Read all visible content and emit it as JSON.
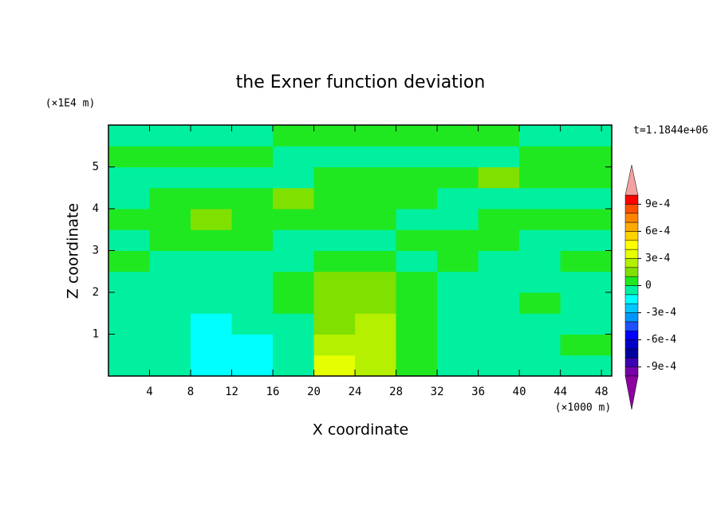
{
  "chart_data": {
    "type": "contour",
    "title": "the Exner function deviation",
    "subtitle": "t=1.1844e+06",
    "x_label": "X coordinate",
    "x_unit": "(×1000 m)",
    "y_label": "Z coordinate",
    "y_unit": "(×1E4 m)",
    "xlim": [
      0,
      49
    ],
    "ylim": [
      0,
      6
    ],
    "xticks": [
      4,
      8,
      12,
      16,
      20,
      24,
      28,
      32,
      36,
      40,
      44,
      48
    ],
    "yticks": [
      1,
      2,
      3,
      4,
      5
    ],
    "x": [
      2,
      6,
      10,
      14,
      18,
      22,
      26,
      30,
      34,
      38,
      42,
      46
    ],
    "y": [
      0.25,
      0.75,
      1.25,
      1.75,
      2.25,
      2.75,
      3.25,
      3.75,
      4.25,
      4.75,
      5.25,
      5.75
    ],
    "values": [
      [
        -0.0001,
        -0.0001,
        -0.00015,
        -0.00015,
        -5e-05,
        0.00035,
        0.00025,
        5e-05,
        -5e-05,
        -5e-05,
        -5e-05,
        -5e-05
      ],
      [
        -5e-05,
        -0.0001,
        -0.00015,
        -0.00015,
        -5e-05,
        0.00025,
        0.00025,
        5e-05,
        -5e-05,
        -5e-05,
        -0.0001,
        5e-05
      ],
      [
        -5e-05,
        -0.0001,
        -0.00015,
        -0.0001,
        -5e-05,
        0.00015,
        0.00025,
        5e-05,
        -5e-05,
        -5e-05,
        -5e-05,
        -5e-05
      ],
      [
        -5e-05,
        -5e-05,
        -0.0001,
        -5e-05,
        5e-05,
        0.00015,
        0.00015,
        5e-05,
        -5e-05,
        -5e-05,
        5e-05,
        -5e-05
      ],
      [
        -5e-05,
        -5e-05,
        -5e-05,
        -5e-05,
        5e-05,
        0.00015,
        0.00015,
        5e-05,
        -5e-05,
        -5e-05,
        -5e-05,
        -5e-05
      ],
      [
        5e-05,
        -5e-05,
        -5e-05,
        -5e-05,
        -5e-05,
        5e-05,
        5e-05,
        -5e-05,
        5e-05,
        -5e-05,
        -5e-05,
        5e-05
      ],
      [
        -5e-05,
        5e-05,
        5e-05,
        5e-05,
        -5e-05,
        -5e-05,
        -5e-05,
        5e-05,
        5e-05,
        5e-05,
        -5e-05,
        -5e-05
      ],
      [
        5e-05,
        5e-05,
        0.00015,
        5e-05,
        5e-05,
        5e-05,
        5e-05,
        -5e-05,
        -5e-05,
        5e-05,
        5e-05,
        5e-05
      ],
      [
        -5e-05,
        5e-05,
        5e-05,
        5e-05,
        0.00015,
        5e-05,
        5e-05,
        5e-05,
        -5e-05,
        -5e-05,
        -5e-05,
        -5e-05
      ],
      [
        -5e-05,
        -5e-05,
        -5e-05,
        -5e-05,
        -5e-05,
        5e-05,
        5e-05,
        5e-05,
        5e-05,
        0.00015,
        5e-05,
        5e-05
      ],
      [
        5e-05,
        5e-05,
        5e-05,
        5e-05,
        -5e-05,
        -5e-05,
        -5e-05,
        -5e-05,
        -0.0001,
        -5e-05,
        5e-05,
        5e-05
      ],
      [
        -5e-05,
        -5e-05,
        -5e-05,
        -5e-05,
        5e-05,
        5e-05,
        5e-05,
        5e-05,
        5e-05,
        5e-05,
        -5e-05,
        -5e-05
      ]
    ],
    "colorbar": {
      "levels": [
        -0.001,
        -0.0009,
        -0.0008,
        -0.0007,
        -0.0006,
        -0.0005,
        -0.0004,
        -0.0003,
        -0.0002,
        -0.0001,
        0,
        0.0001,
        0.0002,
        0.0003,
        0.0004,
        0.0005,
        0.0006,
        0.0007,
        0.0008,
        0.0009,
        0.001
      ],
      "colors": [
        "#7800a8",
        "#3c00b4",
        "#0000a0",
        "#0000c8",
        "#0000ff",
        "#1e50ff",
        "#0096ff",
        "#00c8ff",
        "#00ffff",
        "#00f0a0",
        "#20e820",
        "#80e000",
        "#b4f000",
        "#e6ff00",
        "#ffff00",
        "#ffd200",
        "#ffaa00",
        "#ff8200",
        "#ff5000",
        "#ff0000"
      ],
      "under_color": "#8c00a0",
      "over_color": "#f4a0a0",
      "ticks": [
        {
          "value": -0.0009,
          "label": "-9e-4"
        },
        {
          "value": -0.0006,
          "label": "-6e-4"
        },
        {
          "value": -0.0003,
          "label": "-3e-4"
        },
        0,
        {
          "value": 0.0003,
          "label": "3e-4"
        },
        {
          "value": 0.0006,
          "label": "6e-4"
        },
        {
          "value": 0.0009,
          "label": "9e-4"
        }
      ]
    }
  }
}
